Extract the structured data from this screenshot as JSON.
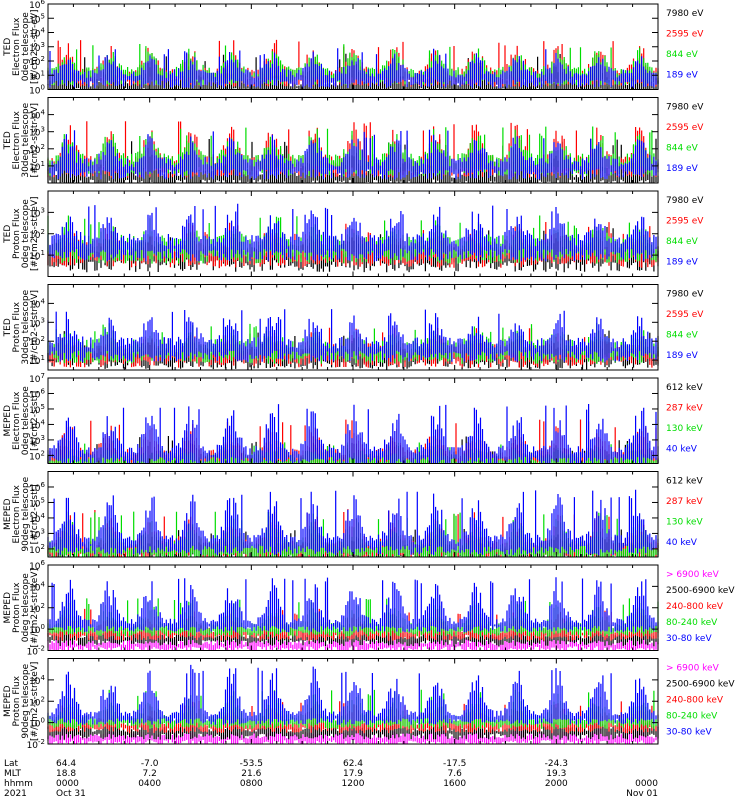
{
  "chart_data": [
    {
      "type": "line",
      "panel_id": "p1",
      "ylabel": [
        "TED",
        "Electron Flux",
        "0deg telescope",
        "[#/cm2-s-str-eV]"
      ],
      "y_scale": "log",
      "ylim": [
        1,
        1000000
      ],
      "yticks": [
        {
          "e": "0"
        },
        {
          "e": "1"
        },
        {
          "e": "2"
        },
        {
          "e": "3"
        },
        {
          "e": "4"
        },
        {
          "e": "5"
        },
        {
          "e": "6"
        }
      ],
      "series": [
        {
          "name": "7980 eV",
          "color": "#000000",
          "level": 0.5,
          "spread": 1.3
        },
        {
          "name": "2595 eV",
          "color": "#ff0000",
          "level": 1.2,
          "spread": 1.6
        },
        {
          "name": "844 eV",
          "color": "#00dd00",
          "level": 1.3,
          "spread": 1.2
        },
        {
          "name": "189 eV",
          "color": "#0000ff",
          "level": 1.1,
          "spread": 1.1
        }
      ]
    },
    {
      "type": "line",
      "panel_id": "p2",
      "ylabel": [
        "TED",
        "Electron Flux",
        "30deg telescope",
        "[#/cm2-s-str-eV]"
      ],
      "y_scale": "log",
      "ylim": [
        1,
        100000
      ],
      "yticks": [
        {
          "e": "1"
        },
        {
          "e": "2"
        },
        {
          "e": "3"
        },
        {
          "e": "4"
        }
      ],
      "series": [
        {
          "name": "7980 eV",
          "color": "#000000",
          "level": 0.6,
          "spread": 1.3
        },
        {
          "name": "2595 eV",
          "color": "#ff0000",
          "level": 1.3,
          "spread": 1.6
        },
        {
          "name": "844 eV",
          "color": "#00dd00",
          "level": 1.4,
          "spread": 1.2
        },
        {
          "name": "189 eV",
          "color": "#0000ff",
          "level": 1.2,
          "spread": 1.2
        }
      ]
    },
    {
      "type": "line",
      "panel_id": "p3",
      "ylabel": [
        "TED",
        "Proton Flux",
        "0deg telescope",
        "[#/cm2-s-str-eV]"
      ],
      "y_scale": "log",
      "ylim": [
        1,
        10000
      ],
      "yticks": [
        {
          "e": "1"
        },
        {
          "e": "2"
        },
        {
          "e": "3"
        }
      ],
      "series": [
        {
          "name": "7980 eV",
          "color": "#000000",
          "level": 1.2,
          "spread": 0.5
        },
        {
          "name": "2595 eV",
          "color": "#ff0000",
          "level": 1.4,
          "spread": 0.5
        },
        {
          "name": "844 eV",
          "color": "#00dd00",
          "level": 1.6,
          "spread": 0.6
        },
        {
          "name": "189 eV",
          "color": "#0000ff",
          "level": 1.7,
          "spread": 1.0
        }
      ]
    },
    {
      "type": "line",
      "panel_id": "p4",
      "ylabel": [
        "TED",
        "Proton Flux",
        "30deg telescope",
        "[#/cm2-s-str-eV]"
      ],
      "y_scale": "log",
      "ylim": [
        3,
        100000
      ],
      "yticks": [
        {
          "e": "1"
        },
        {
          "e": "2"
        },
        {
          "e": "3"
        },
        {
          "e": "4"
        }
      ],
      "series": [
        {
          "name": "7980 eV",
          "color": "#000000",
          "level": 1.5,
          "spread": 0.5
        },
        {
          "name": "2595 eV",
          "color": "#ff0000",
          "level": 1.6,
          "spread": 0.5
        },
        {
          "name": "844 eV",
          "color": "#00dd00",
          "level": 1.8,
          "spread": 0.6
        },
        {
          "name": "189 eV",
          "color": "#0000ff",
          "level": 1.9,
          "spread": 1.1
        }
      ]
    },
    {
      "type": "line",
      "panel_id": "p5",
      "ylabel": [
        "MEPED",
        "Electron Flux",
        "0deg telescope",
        "[#/cm2-s-str]"
      ],
      "y_scale": "log",
      "ylim": [
        30,
        10000000
      ],
      "yticks": [
        {
          "e": "2"
        },
        {
          "e": "3"
        },
        {
          "e": "4"
        },
        {
          "e": "5"
        },
        {
          "e": "6"
        },
        {
          "e": "7"
        }
      ],
      "series": [
        {
          "name": "612 keV",
          "color": "#000000",
          "level": 2.0,
          "spread": 0.6
        },
        {
          "name": "287 keV",
          "color": "#ff0000",
          "level": 2.1,
          "spread": 1.5
        },
        {
          "name": "130 keV",
          "color": "#00dd00",
          "level": 1.8,
          "spread": 0.4
        },
        {
          "name": "40 keV",
          "color": "#0000ff",
          "level": 2.3,
          "spread": 2.2
        }
      ]
    },
    {
      "type": "line",
      "panel_id": "p6",
      "ylabel": [
        "MEPED",
        "Electron Flux",
        "90deg telescope",
        "[#/cm2-s-str]"
      ],
      "y_scale": "log",
      "ylim": [
        30,
        10000000
      ],
      "yticks": [
        {
          "e": "2"
        },
        {
          "e": "3"
        },
        {
          "e": "4"
        },
        {
          "e": "5"
        },
        {
          "e": "6"
        }
      ],
      "series": [
        {
          "name": "612 keV",
          "color": "#000000",
          "level": 2.1,
          "spread": 0.6
        },
        {
          "name": "287 keV",
          "color": "#ff0000",
          "level": 2.3,
          "spread": 1.6
        },
        {
          "name": "130 keV",
          "color": "#00dd00",
          "level": 2.2,
          "spread": 1.5
        },
        {
          "name": "40 keV",
          "color": "#0000ff",
          "level": 2.6,
          "spread": 2.4
        }
      ]
    },
    {
      "type": "line",
      "panel_id": "p7",
      "ylabel": [
        "MEPED",
        "Proton Flux",
        "0deg telescope",
        "[#/cm2-s-str-keV]"
      ],
      "y_scale": "log",
      "ylim": [
        0.01,
        1000000
      ],
      "yticks": [
        {
          "e": "-2"
        },
        {
          "e": "0"
        },
        {
          "e": "2"
        },
        {
          "e": "4"
        },
        {
          "e": "6"
        }
      ],
      "series": [
        {
          "name": "> 6900 keV",
          "color": "#ff00ff",
          "level": -1.2,
          "spread": 0.4
        },
        {
          "name": "2500-6900 keV",
          "color": "#000000",
          "level": -0.6,
          "spread": 0.7
        },
        {
          "name": "240-800 keV",
          "color": "#ff0000",
          "level": -0.1,
          "spread": 1.3
        },
        {
          "name": "80-240 keV",
          "color": "#00dd00",
          "level": 0.3,
          "spread": 1.8
        },
        {
          "name": "30-80 keV",
          "color": "#0000ff",
          "level": 0.7,
          "spread": 3.2
        }
      ]
    },
    {
      "type": "line",
      "panel_id": "p8",
      "ylabel": [
        "MEPED",
        "Proton Flux",
        "90deg telescope",
        "[#/cm2-s-str-keV]"
      ],
      "y_scale": "log",
      "ylim": [
        0.01,
        1000000
      ],
      "yticks": [
        {
          "e": "-2"
        },
        {
          "e": "0"
        },
        {
          "e": "2"
        },
        {
          "e": "4"
        }
      ],
      "series": [
        {
          "name": "> 6900 keV",
          "color": "#ff00ff",
          "level": -1.2,
          "spread": 0.5
        },
        {
          "name": "2500-6900 keV",
          "color": "#000000",
          "level": -0.6,
          "spread": 0.7
        },
        {
          "name": "240-800 keV",
          "color": "#ff0000",
          "level": 0.0,
          "spread": 1.4
        },
        {
          "name": "80-240 keV",
          "color": "#00dd00",
          "level": 0.4,
          "spread": 1.9
        },
        {
          "name": "30-80 keV",
          "color": "#0000ff",
          "level": 0.8,
          "spread": 3.4
        }
      ]
    }
  ],
  "x_axis": {
    "row_labels": [
      "Lat",
      "MLT",
      "hhmm",
      "2021"
    ],
    "columns": [
      {
        "lat": "64.4",
        "mlt": "18.8",
        "hhmm": "0000",
        "date": "Oct 31"
      },
      {
        "lat": "-7.0",
        "mlt": "7.2",
        "hhmm": "0400",
        "date": ""
      },
      {
        "lat": "-53.5",
        "mlt": "21.6",
        "hhmm": "0800",
        "date": ""
      },
      {
        "lat": "62.4",
        "mlt": "17.9",
        "hhmm": "1200",
        "date": ""
      },
      {
        "lat": "-17.5",
        "mlt": "7.6",
        "hhmm": "1600",
        "date": ""
      },
      {
        "lat": "-24.3",
        "mlt": "19.3",
        "hhmm": "2000",
        "date": ""
      },
      {
        "lat": "",
        "mlt": "",
        "hhmm": "0000",
        "date": "Nov 01"
      }
    ]
  }
}
